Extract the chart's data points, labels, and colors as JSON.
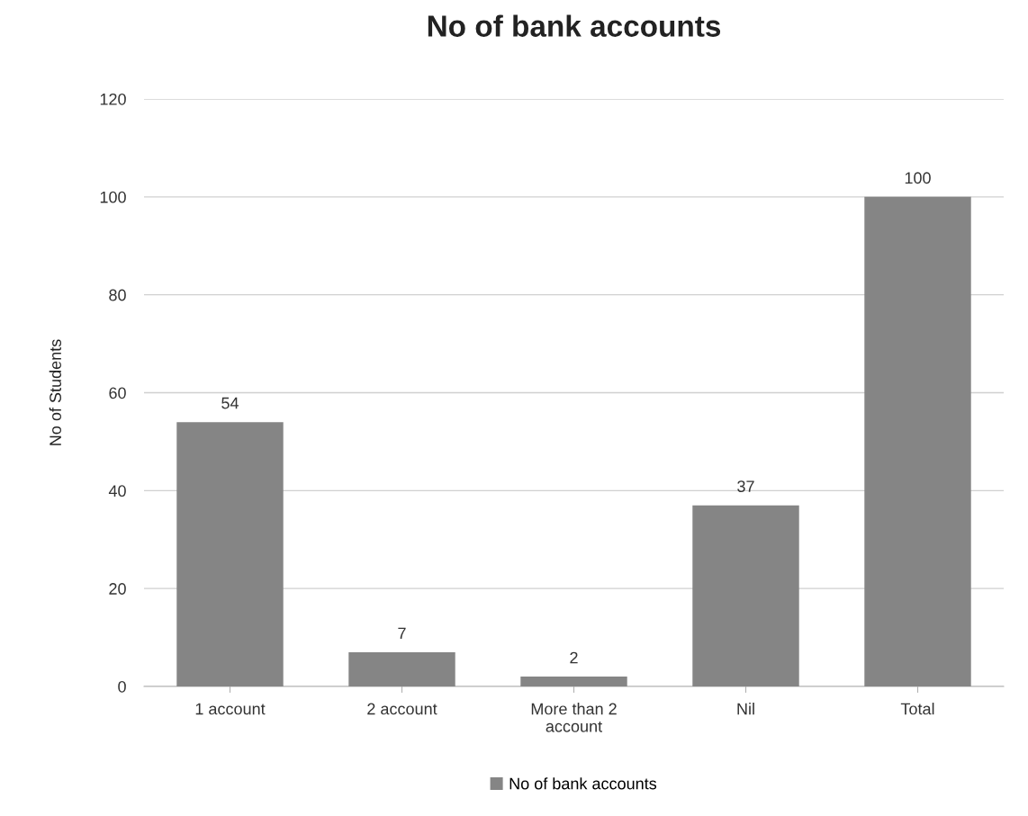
{
  "chart_data": {
    "type": "bar",
    "title": "No of bank accounts",
    "ylabel": "No of Students",
    "categories": [
      "1 account",
      "2 account",
      "More than 2\naccount",
      "Nil",
      "Total"
    ],
    "series": [
      {
        "name": "No of bank accounts",
        "color": "#858585",
        "values": [
          54,
          7,
          2,
          37,
          100
        ]
      }
    ],
    "ylim": [
      0,
      120
    ],
    "yticks": [
      0,
      20,
      40,
      60,
      80,
      100,
      120
    ],
    "grid": "y",
    "legend": "bottom",
    "data_labels": true
  }
}
